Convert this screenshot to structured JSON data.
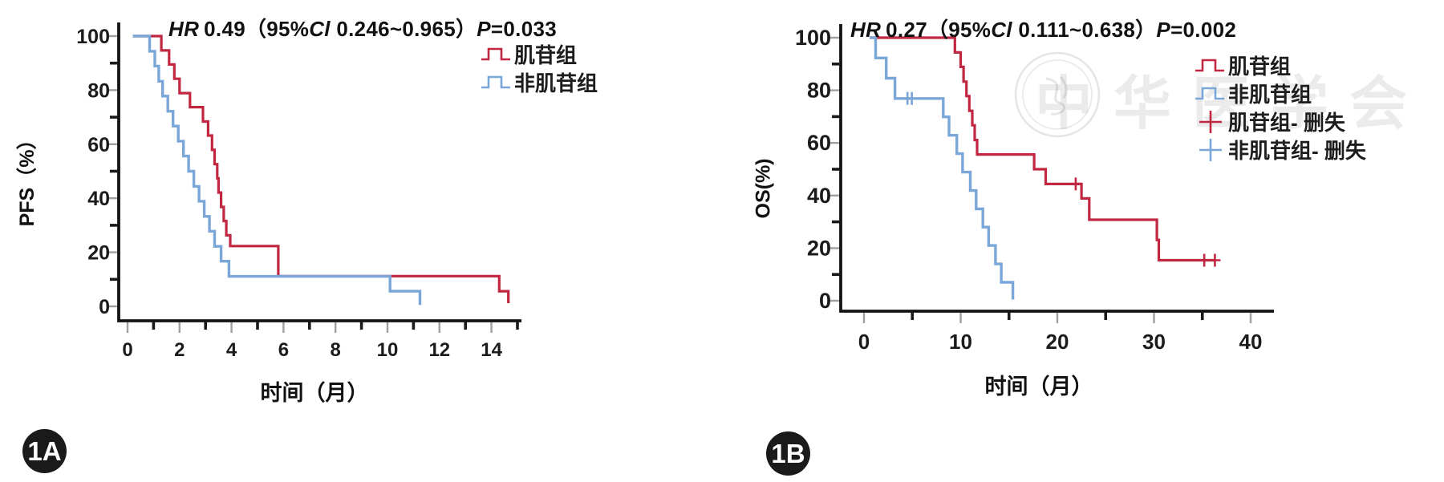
{
  "page": {
    "background": "#ffffff"
  },
  "figure_labels": {
    "a": "1A",
    "b": "1B"
  },
  "colors": {
    "red": "#c22742",
    "blue": "#7aa6d8",
    "axis": "#141414",
    "tick_labeled": "#a0a0a0",
    "tick_minor": "#1a1a1a",
    "watermark": "#cfcfcf"
  },
  "chart_data": [
    {
      "type": "line",
      "subtype": "kaplan-meier-step",
      "panel": "1A",
      "title_parts": {
        "hr_label": "HR",
        "hr_value": "0.49",
        "ci_open": "（95%",
        "ci_italic": "Cl",
        "ci_rest": " 0.246~0.965）",
        "p_label": "P",
        "p_value": "=0.033"
      },
      "ylabel": "PFS（%）",
      "xlabel": "时间（月）",
      "xlim": [
        0,
        15.5
      ],
      "ylim": [
        0,
        100
      ],
      "xticks_labeled": [
        0,
        2,
        4,
        6,
        8,
        10,
        12,
        14
      ],
      "xticks_minor": [
        1,
        3,
        5,
        7,
        9,
        11,
        13,
        15
      ],
      "yticks_labeled": [
        0,
        20,
        40,
        60,
        80,
        100
      ],
      "yticks_minor": [
        10,
        30,
        50,
        70,
        90
      ],
      "legend": [
        {
          "label": "肌苷组",
          "color_key": "red",
          "icon": "step"
        },
        {
          "label": "非肌苷组",
          "color_key": "blue",
          "icon": "step"
        }
      ],
      "series": [
        {
          "name": "肌苷组",
          "color_key": "red",
          "width": 3.2,
          "points": [
            [
              0.2,
              100
            ],
            [
              1.3,
              94.7
            ],
            [
              1.6,
              89.5
            ],
            [
              1.8,
              84.2
            ],
            [
              2.0,
              78.9
            ],
            [
              2.4,
              73.7
            ],
            [
              2.9,
              68.4
            ],
            [
              3.1,
              63.2
            ],
            [
              3.25,
              57.9
            ],
            [
              3.35,
              52.6
            ],
            [
              3.45,
              47.4
            ],
            [
              3.5,
              42.1
            ],
            [
              3.6,
              36.8
            ],
            [
              3.7,
              31.6
            ],
            [
              3.8,
              26.3
            ],
            [
              3.95,
              22.3
            ],
            [
              5.8,
              11.2
            ],
            [
              14.3,
              5.6
            ],
            [
              14.65,
              1.2
            ]
          ],
          "censors": []
        },
        {
          "name": "非肌苷组",
          "color_key": "blue",
          "width": 3.4,
          "points": [
            [
              0.2,
              100
            ],
            [
              0.85,
              94.4
            ],
            [
              1.05,
              88.9
            ],
            [
              1.2,
              83.3
            ],
            [
              1.35,
              77.8
            ],
            [
              1.55,
              72.2
            ],
            [
              1.75,
              66.7
            ],
            [
              1.95,
              61.1
            ],
            [
              2.15,
              55.6
            ],
            [
              2.35,
              50
            ],
            [
              2.55,
              44.4
            ],
            [
              2.75,
              38.9
            ],
            [
              2.95,
              33.3
            ],
            [
              3.15,
              27.8
            ],
            [
              3.35,
              22.2
            ],
            [
              3.6,
              16.7
            ],
            [
              3.9,
              11.1
            ],
            [
              10.1,
              5.6
            ],
            [
              11.25,
              0.5
            ]
          ],
          "censors": []
        }
      ]
    },
    {
      "type": "line",
      "subtype": "kaplan-meier-step",
      "panel": "1B",
      "title_parts": {
        "hr_label": "HR",
        "hr_value": "0.27",
        "ci_open": "（95%",
        "ci_italic": "Cl",
        "ci_rest": " 0.111~0.638）",
        "p_label": "P",
        "p_value": "=0.002"
      },
      "ylabel": "OS(%)",
      "xlabel": "时间（月）",
      "xlim": [
        0,
        42
      ],
      "ylim": [
        0,
        100
      ],
      "xticks_labeled": [
        0,
        10,
        20,
        30,
        40
      ],
      "xticks_minor": [
        5,
        15,
        25,
        35
      ],
      "yticks_labeled": [
        0,
        20,
        40,
        60,
        80,
        100
      ],
      "yticks_minor": [
        10,
        30,
        50,
        70,
        90
      ],
      "legend": [
        {
          "label": "肌苷组",
          "color_key": "red",
          "icon": "step"
        },
        {
          "label": "非肌苷组",
          "color_key": "blue",
          "icon": "step"
        },
        {
          "label": "肌苷组- 删失",
          "color_key": "red",
          "icon": "plus"
        },
        {
          "label": "非肌苷组- 删失",
          "color_key": "blue",
          "icon": "plus"
        }
      ],
      "watermark": {
        "text": "中华医学会"
      },
      "series": [
        {
          "name": "肌苷组",
          "color_key": "red",
          "width": 3.2,
          "points": [
            [
              0.6,
              100
            ],
            [
              9.4,
              94.4
            ],
            [
              10.0,
              88.9
            ],
            [
              10.3,
              83.3
            ],
            [
              10.6,
              77.8
            ],
            [
              10.9,
              72.2
            ],
            [
              11.2,
              66.7
            ],
            [
              11.45,
              61.1
            ],
            [
              11.7,
              55.6
            ],
            [
              17.6,
              50
            ],
            [
              18.8,
              44.4
            ],
            [
              22.5,
              38.9
            ],
            [
              23.3,
              30.8
            ],
            [
              30.3,
              23.1
            ],
            [
              30.5,
              15.4
            ],
            [
              36.4,
              15.4
            ]
          ],
          "censors": [
            [
              21.9,
              44.4
            ],
            [
              35.2,
              15.4
            ],
            [
              36.3,
              15.4
            ]
          ]
        },
        {
          "name": "非肌苷组",
          "color_key": "blue",
          "width": 3.4,
          "points": [
            [
              0.6,
              100
            ],
            [
              1.2,
              92.3
            ],
            [
              2.3,
              84.6
            ],
            [
              3.2,
              76.9
            ],
            [
              8.2,
              69.9
            ],
            [
              8.8,
              62.9
            ],
            [
              9.6,
              55.9
            ],
            [
              10.2,
              48.9
            ],
            [
              11.0,
              41.9
            ],
            [
              11.6,
              34.9
            ],
            [
              12.3,
              28
            ],
            [
              12.9,
              21
            ],
            [
              13.6,
              14
            ],
            [
              14.2,
              7
            ],
            [
              15.4,
              0.5
            ]
          ],
          "censors": [
            [
              4.5,
              76.9
            ],
            [
              4.95,
              76.9
            ]
          ]
        }
      ]
    }
  ]
}
